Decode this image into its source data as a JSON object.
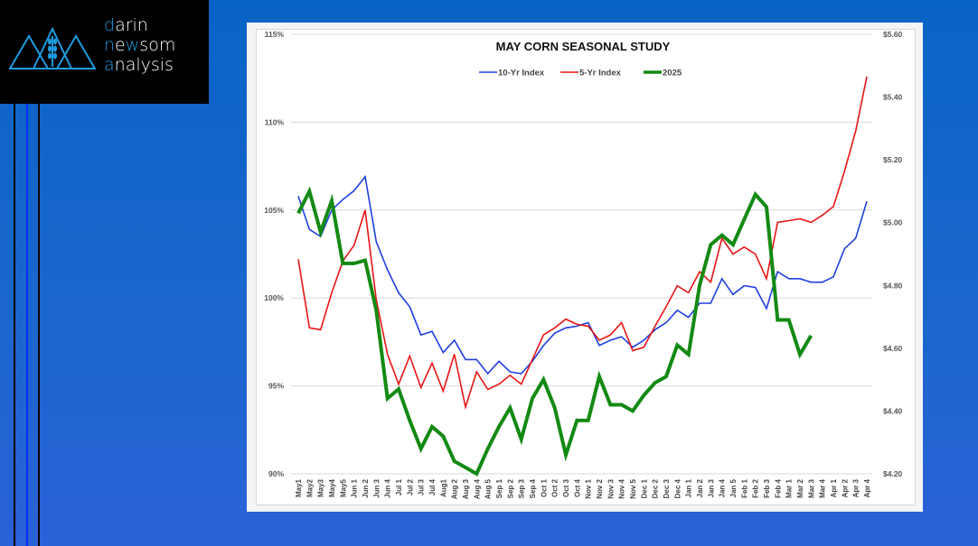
{
  "brand": {
    "lines": [
      {
        "accent": "d",
        "rest": "arin"
      },
      {
        "accent": "n",
        "mid": "ew",
        "rest": "som",
        "pre": "",
        "accent2": "w"
      },
      {
        "accent": "a",
        "rest": "nalysis"
      }
    ],
    "accent_color": "#1e9be0"
  },
  "chart_data": {
    "type": "line",
    "title": "MAY CORN SEASONAL STUDY",
    "xlabel": "",
    "ylabel": "",
    "y_left": {
      "min": 90,
      "max": 115,
      "ticks": [
        "90%",
        "95%",
        "100%",
        "105%",
        "110%",
        "115%"
      ]
    },
    "y_right": {
      "min": 4.2,
      "max": 5.6,
      "ticks": [
        "$4.20",
        "$4.40",
        "$4.60",
        "$4.80",
        "$5.00",
        "$5.20",
        "$5.40",
        "$5.60"
      ]
    },
    "grid": true,
    "legend_position": "top-center",
    "categories": [
      "May1",
      "May2",
      "May3",
      "May4",
      "May5",
      "Jun 1",
      "Jun 2",
      "Jun 3",
      "Jun 4",
      "Jul 1",
      "Jul 2",
      "Jul 3",
      "Jul 4",
      "Aug1",
      "Aug 2",
      "Aug 3",
      "Aug 4",
      "Aug 5",
      "Sep 1",
      "Sep 2",
      "Sep 3",
      "Sep 4",
      "Oct 1",
      "Oct 2",
      "Oct 3",
      "Oct 4",
      "Nov 1",
      "Nov 2",
      "Nov 3",
      "Nov 4",
      "Nov 5",
      "Dec 1",
      "Dec 2",
      "Dec 3",
      "Dec 4",
      "Jan 1",
      "Jan 2",
      "Jan 3",
      "Jan 4",
      "Jan 5",
      "Feb 1",
      "Feb 2",
      "Feb 3",
      "Feb 4",
      "Mar 1",
      "Mar 2",
      "Mar 3",
      "Mar 4",
      "Apr 1",
      "Apr 2",
      "Apr 3",
      "Apr 4"
    ],
    "series": [
      {
        "name": "10-Yr Index",
        "axis": "left",
        "color": "#1f3fe0",
        "values": [
          105.8,
          103.9,
          103.5,
          105.0,
          105.6,
          106.1,
          106.9,
          103.2,
          101.6,
          100.3,
          99.5,
          97.9,
          98.1,
          96.9,
          97.6,
          96.5,
          96.5,
          95.7,
          96.4,
          95.8,
          95.7,
          96.4,
          97.3,
          98.0,
          98.3,
          98.4,
          98.6,
          97.3,
          97.6,
          97.8,
          97.2,
          97.6,
          98.2,
          98.6,
          99.3,
          98.9,
          99.7,
          99.7,
          101.1,
          100.2,
          100.7,
          100.6,
          99.4,
          101.5,
          101.1,
          101.1,
          100.9,
          100.9,
          101.2,
          102.8,
          103.4,
          105.5
        ]
      },
      {
        "name": "5-Yr Index",
        "axis": "left",
        "color": "#e81515",
        "values": [
          102.2,
          98.3,
          98.2,
          100.3,
          102.1,
          103.0,
          105.0,
          99.9,
          96.8,
          95.1,
          96.7,
          94.9,
          96.3,
          94.7,
          96.8,
          93.8,
          95.8,
          94.8,
          95.1,
          95.6,
          95.1,
          96.5,
          97.9,
          98.3,
          98.8,
          98.5,
          98.4,
          97.6,
          97.9,
          98.6,
          97.0,
          97.2,
          98.4,
          99.5,
          100.7,
          100.3,
          101.5,
          100.9,
          103.4,
          102.5,
          102.9,
          102.5,
          101.1,
          104.3,
          104.4,
          104.5,
          104.3,
          104.7,
          105.2,
          107.2,
          109.5,
          112.6
        ]
      },
      {
        "name": "2025",
        "axis": "right",
        "color": "#138a13",
        "values": [
          5.03,
          5.1,
          4.97,
          5.07,
          4.87,
          4.87,
          4.88,
          4.72,
          4.44,
          4.47,
          4.37,
          4.28,
          4.35,
          4.32,
          4.24,
          4.22,
          4.2,
          4.28,
          4.35,
          4.41,
          4.31,
          4.44,
          4.5,
          4.41,
          4.26,
          4.37,
          4.37,
          4.51,
          4.42,
          4.42,
          4.4,
          4.45,
          4.49,
          4.51,
          4.61,
          4.58,
          4.8,
          4.93,
          4.96,
          4.93,
          5.01,
          5.09,
          5.05,
          4.69,
          4.69,
          4.58,
          4.64
        ]
      }
    ]
  }
}
